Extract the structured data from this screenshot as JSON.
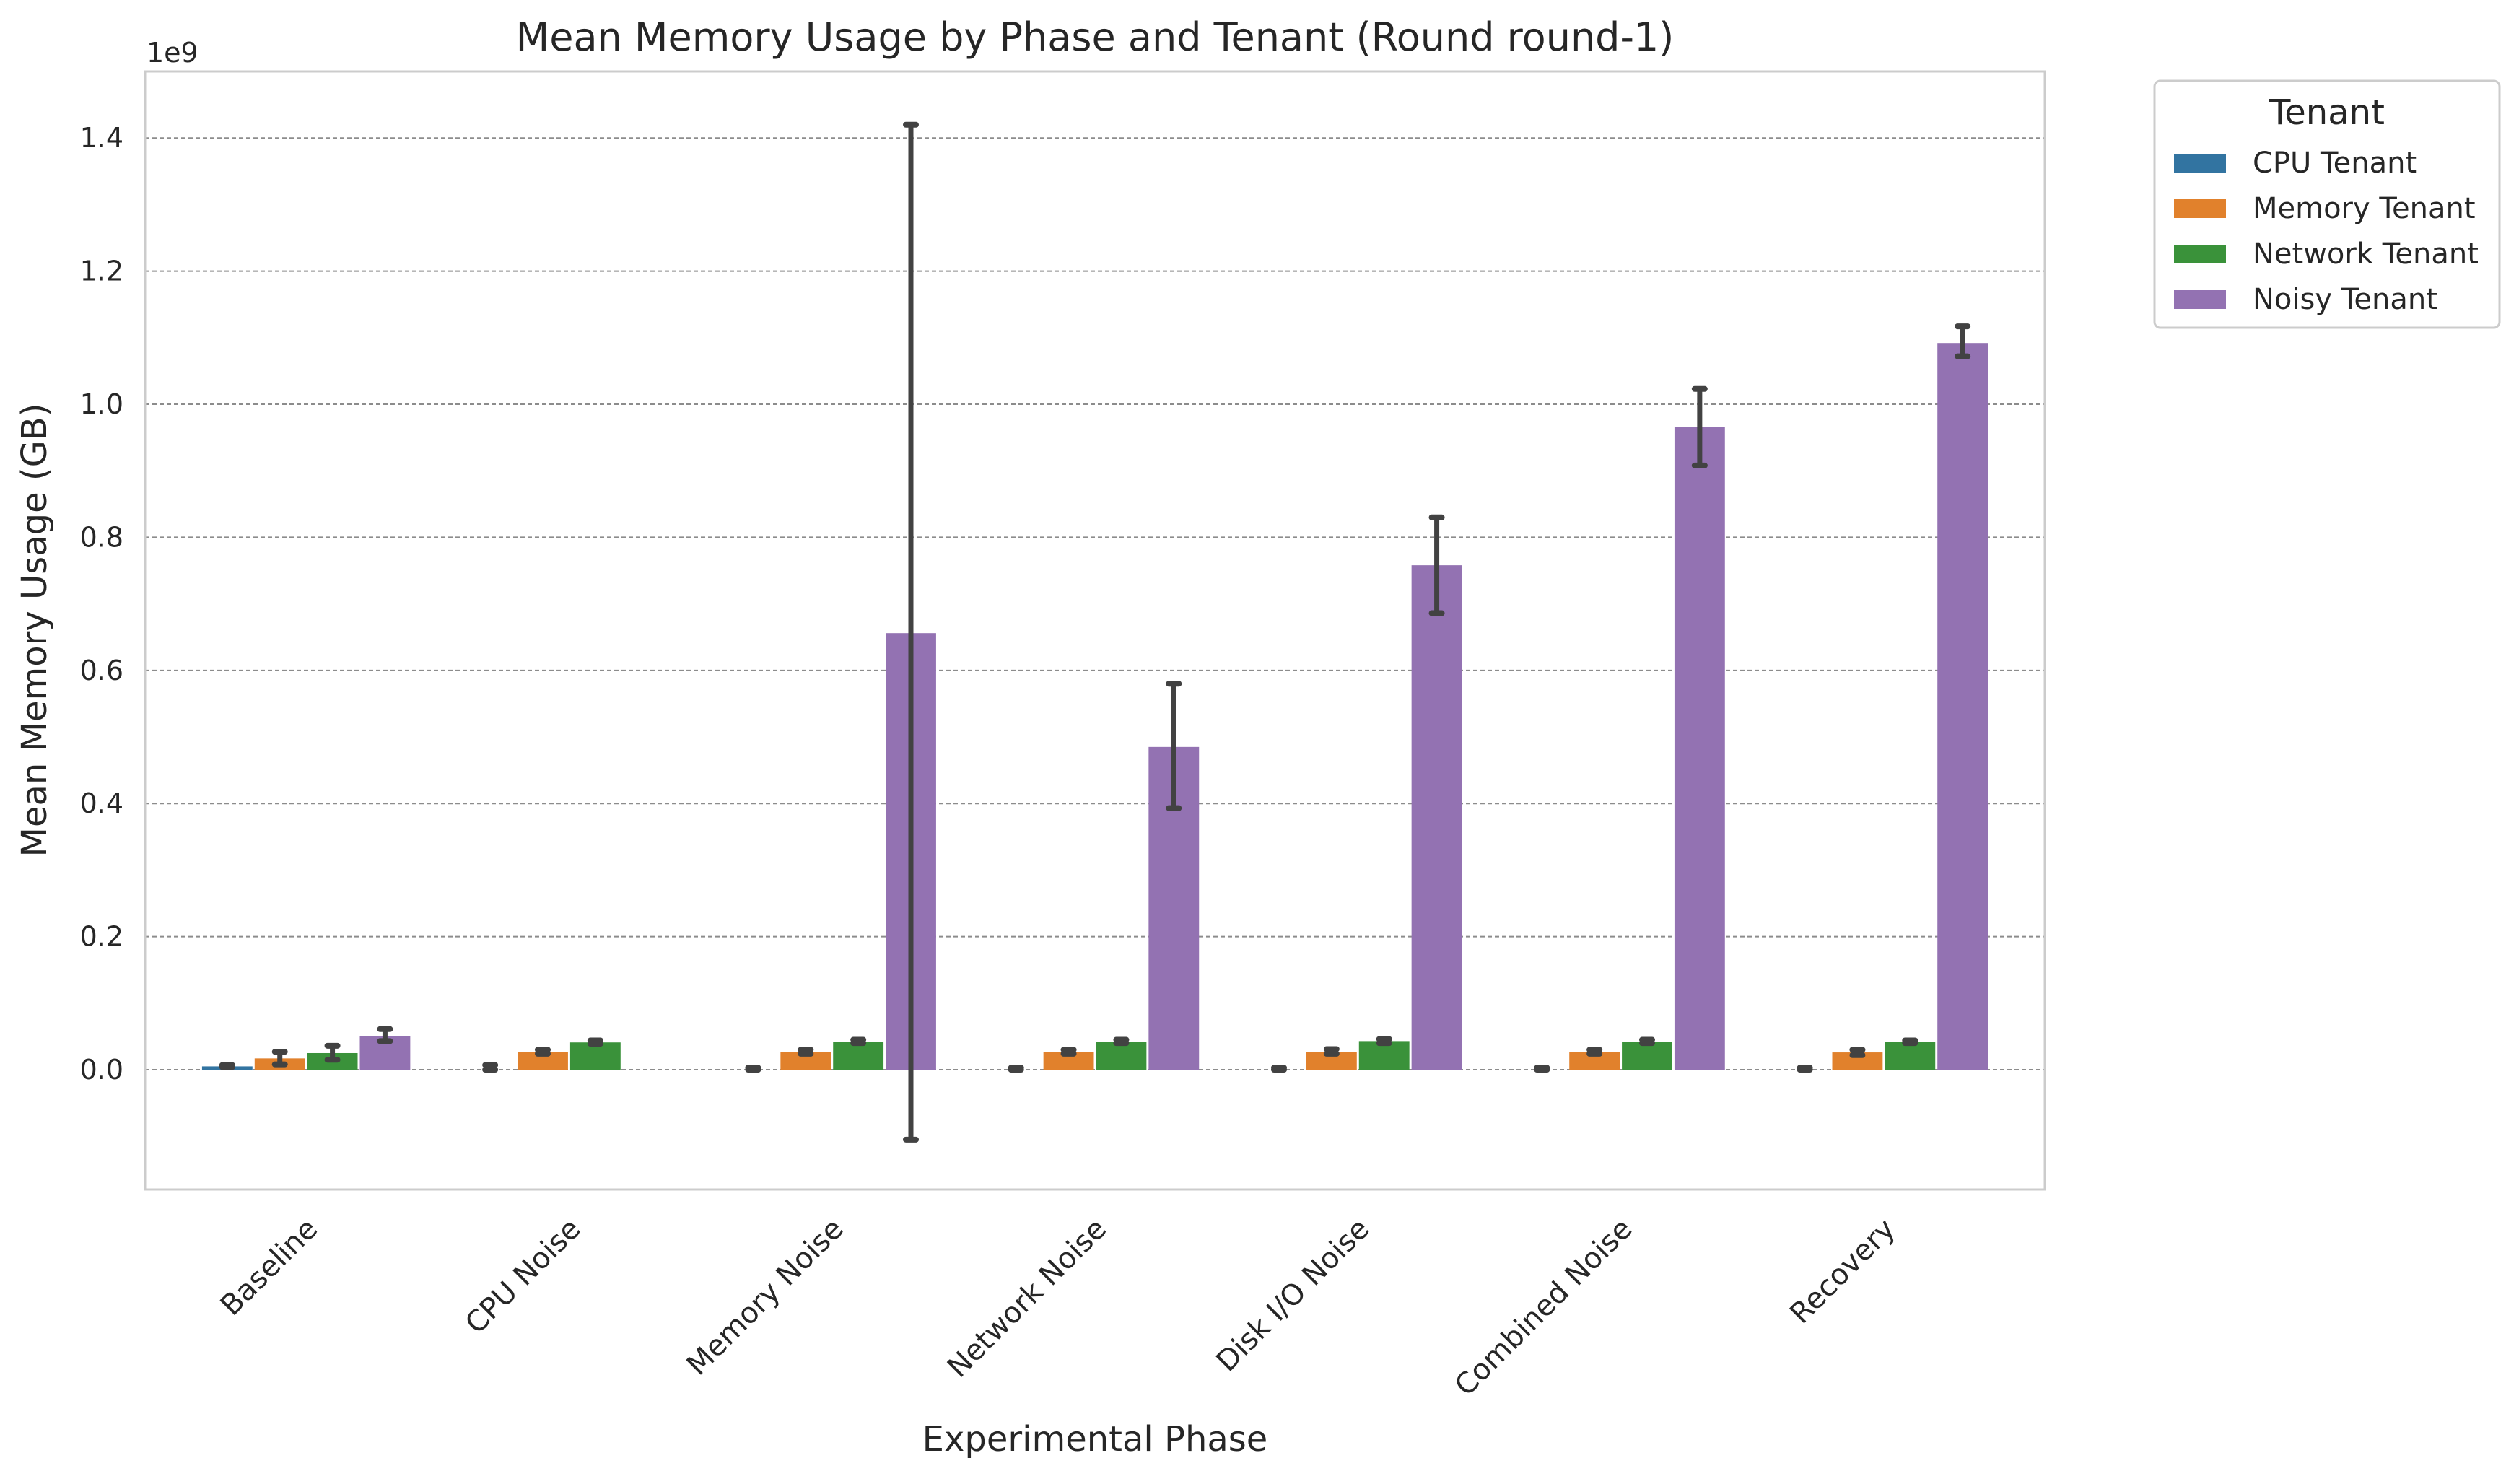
{
  "chart_data": {
    "type": "bar",
    "title": "Mean Memory Usage by Phase and Tenant (Round round-1)",
    "xlabel": "Experimental Phase",
    "ylabel": "Mean Memory Usage (GB)",
    "y_offset_text": "1e9",
    "ylim": [
      -180000000,
      1500000000
    ],
    "yticks": [
      0.0,
      0.2,
      0.4,
      0.6,
      0.8,
      1.0,
      1.2,
      1.4
    ],
    "ytick_labels": [
      "0.0",
      "0.2",
      "0.4",
      "0.6",
      "0.8",
      "1.0",
      "1.2",
      "1.4"
    ],
    "grid": "horizontal dashed",
    "legend_placement": "outside top-right",
    "legend_title": "Tenant",
    "categories": [
      "Baseline",
      "CPU Noise",
      "Memory Noise",
      "Network Noise",
      "Disk I/O Noise",
      "Combined Noise",
      "Recovery"
    ],
    "series": [
      {
        "name": "CPU Tenant",
        "color": "#3274a1",
        "values": [
          5000000,
          0,
          0,
          0,
          0,
          0,
          0
        ],
        "error_low": [
          4000000,
          0,
          0,
          0,
          0,
          0,
          0
        ],
        "error_high": [
          7000000,
          7000000,
          3000000,
          3000000,
          3000000,
          3000000,
          3000000
        ],
        "err_low_override": [
          null,
          0,
          0,
          0,
          0,
          0,
          0
        ]
      },
      {
        "name": "Memory Tenant",
        "color": "#e1812c",
        "values": [
          17000000,
          27000000,
          27000000,
          27000000,
          27000000,
          27000000,
          26000000
        ],
        "error_low": [
          8000000,
          24000000,
          24000000,
          24000000,
          24000000,
          24000000,
          22000000
        ],
        "error_high": [
          27000000,
          30000000,
          30000000,
          30000000,
          31000000,
          30000000,
          30000000
        ]
      },
      {
        "name": "Network Tenant",
        "color": "#3a923a",
        "values": [
          25000000,
          41000000,
          42000000,
          42000000,
          43000000,
          42000000,
          42000000
        ],
        "error_low": [
          15000000,
          39000000,
          40000000,
          40000000,
          40000000,
          40000000,
          40000000
        ],
        "error_high": [
          36000000,
          44000000,
          45000000,
          45000000,
          46000000,
          45000000,
          44000000
        ]
      },
      {
        "name": "Noisy Tenant",
        "color": "#9372b2",
        "values": [
          50000000,
          null,
          656000000,
          485000000,
          758000000,
          966000000,
          1092000000
        ],
        "error_low": [
          43000000,
          null,
          -105000000,
          393000000,
          686000000,
          908000000,
          1072000000
        ],
        "error_high": [
          61000000,
          null,
          1420000000,
          580000000,
          830000000,
          1023000000,
          1117000000
        ]
      }
    ]
  }
}
